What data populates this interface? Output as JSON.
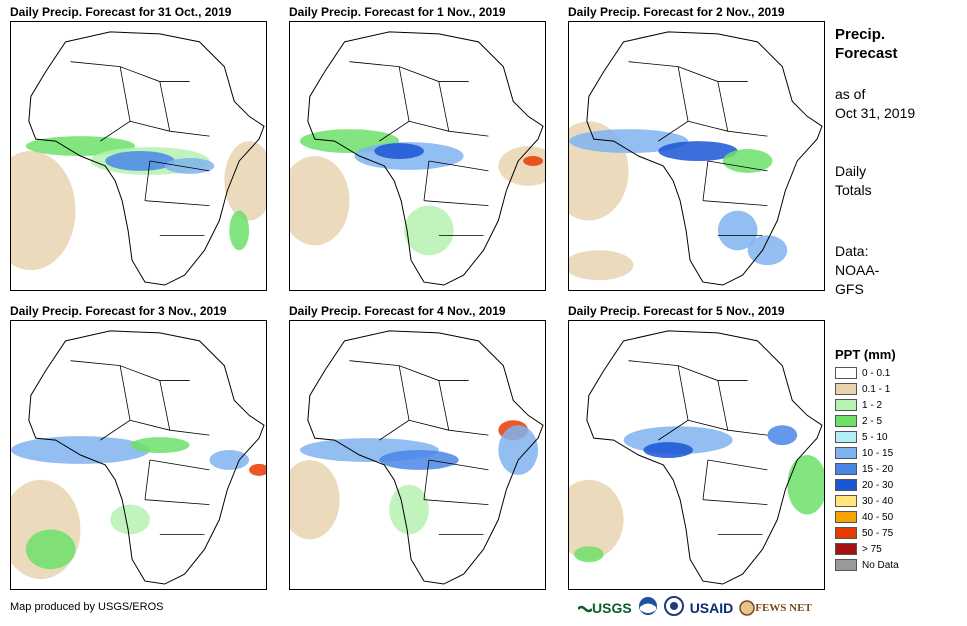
{
  "panels": [
    {
      "title": "Daily Precip. Forecast for 31 Oct., 2019"
    },
    {
      "title": "Daily Precip. Forecast for 1 Nov., 2019"
    },
    {
      "title": "Daily Precip. Forecast for 2 Nov., 2019"
    },
    {
      "title": "Daily Precip. Forecast for 3 Nov., 2019"
    },
    {
      "title": "Daily Precip. Forecast for 4 Nov., 2019"
    },
    {
      "title": "Daily Precip. Forecast for 5 Nov., 2019"
    }
  ],
  "sidebar": {
    "title_line1": "Precip.",
    "title_line2": "Forecast",
    "asof_line1": "as of",
    "asof_line2": "Oct 31, 2019",
    "totals_line1": "Daily",
    "totals_line2": "Totals",
    "data_line1": "Data:",
    "data_line2": "NOAA-",
    "data_line3": "GFS"
  },
  "legend": {
    "title": "PPT (mm)",
    "items": [
      {
        "label": "0 - 0.1",
        "color": "#ffffff"
      },
      {
        "label": "0.1 - 1",
        "color": "#e8d3b0"
      },
      {
        "label": "1 - 2",
        "color": "#b6f2b0"
      },
      {
        "label": "2 - 5",
        "color": "#6de06a"
      },
      {
        "label": "5 - 10",
        "color": "#b4eef5"
      },
      {
        "label": "10 - 15",
        "color": "#7fb3f0"
      },
      {
        "label": "15 - 20",
        "color": "#4a86e8"
      },
      {
        "label": "20 - 30",
        "color": "#1a56d6"
      },
      {
        "label": "30 - 40",
        "color": "#ffe57a"
      },
      {
        "label": "40 - 50",
        "color": "#f5a300"
      },
      {
        "label": "50 - 75",
        "color": "#e83b00"
      },
      {
        "label": "> 75",
        "color": "#a51212"
      },
      {
        "label": "No Data",
        "color": "#999999"
      }
    ]
  },
  "footer": {
    "credit": "Map produced by USGS/EROS"
  },
  "logos": {
    "usgs": "USGS",
    "usaid": "USAID",
    "fewsnet": "FEWS NET"
  }
}
